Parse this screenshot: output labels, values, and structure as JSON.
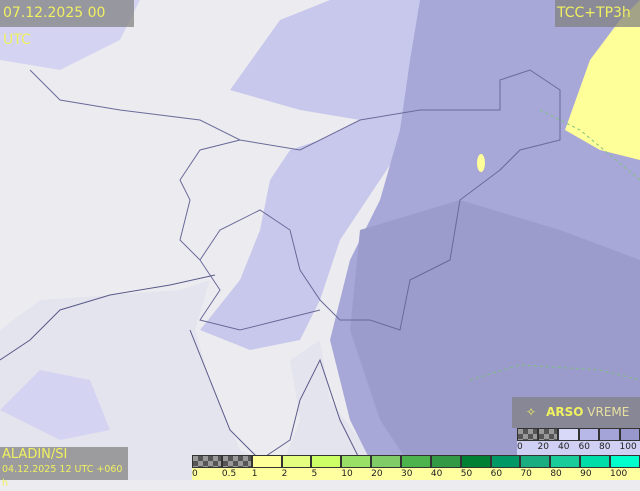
{
  "header": {
    "valid_time": "07.12.2025 00 UTC",
    "product": "TCC+TP3h"
  },
  "model": {
    "name": "ALADIN/SI",
    "run": "04.12.2025 12 UTC +060 h"
  },
  "logo": {
    "icon": "satellite-icon",
    "brand": "ARSO",
    "sub": "VREME"
  },
  "cloud_legend": {
    "labels": [
      "0",
      "20",
      "40",
      "60",
      "80",
      "100"
    ],
    "colors": [
      "checker",
      "checker",
      "#d8d8f8",
      "#b8b8e8",
      "#a4a4d8",
      "#9898cc"
    ]
  },
  "precip_legend": {
    "labels": [
      "0",
      "0.5",
      "1",
      "2",
      "5",
      "10",
      "20",
      "30",
      "40",
      "50",
      "60",
      "70",
      "80",
      "90",
      "100"
    ],
    "colors": [
      "checker",
      "checker",
      "#ffff99",
      "#e4ff80",
      "#ccff66",
      "#99e066",
      "#80cc66",
      "#4db34d",
      "#339944",
      "#008033",
      "#009966",
      "#1aad80",
      "#1acc99",
      "#00dda8",
      "#00ffcc"
    ]
  },
  "colors": {
    "label_text": "#f0f060",
    "land": "#ececf0",
    "cloud_high": "#a8a8d8",
    "precip_light": "#ffff99"
  }
}
